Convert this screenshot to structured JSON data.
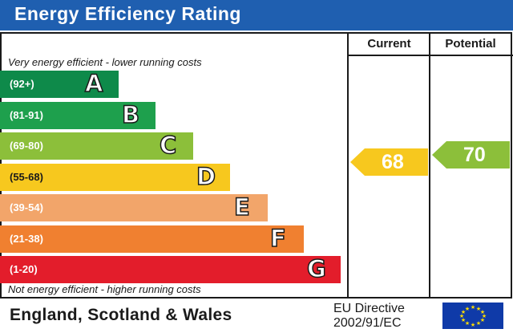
{
  "header": {
    "title": "Energy Efficiency Rating",
    "color": "#1f5fb0"
  },
  "columns": {
    "current": "Current",
    "potential": "Potential"
  },
  "notes": {
    "top": "Very energy efficient - lower running costs",
    "bottom": "Not energy efficient - higher running costs"
  },
  "bands": [
    {
      "range": "(92+)",
      "letter": "A",
      "color": "#0e8a4a"
    },
    {
      "range": "(81-91)",
      "letter": "B",
      "color": "#1ea04d"
    },
    {
      "range": "(69-80)",
      "letter": "C",
      "color": "#8cbf3a"
    },
    {
      "range": "(55-68)",
      "letter": "D",
      "color": "#f7c81e"
    },
    {
      "range": "(39-54)",
      "letter": "E",
      "color": "#f2a56a"
    },
    {
      "range": "(21-38)",
      "letter": "F",
      "color": "#f08030"
    },
    {
      "range": "(1-20)",
      "letter": "G",
      "color": "#e31d2b"
    }
  ],
  "current": {
    "value": "68",
    "color": "#f7c81e"
  },
  "potential": {
    "value": "70",
    "color": "#8cbf3a"
  },
  "footer": {
    "region": "England, Scotland & Wales",
    "directive_line1": "EU Directive",
    "directive_line2": "2002/91/EC"
  }
}
